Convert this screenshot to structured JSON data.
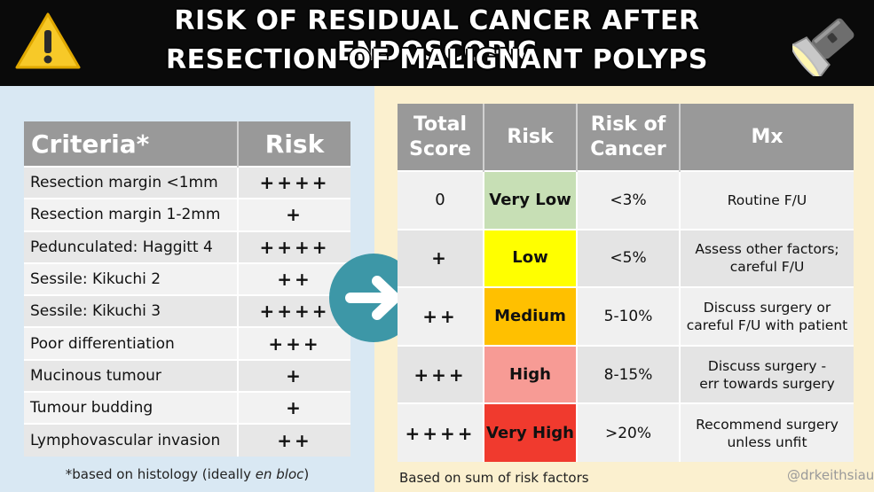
{
  "header": {
    "title_line1": "Risk of residual cancer after endoscopic",
    "title_line2": "resection of malignant polyps",
    "left_icon": "warning-icon",
    "right_icon": "flashlight-icon"
  },
  "criteria_table": {
    "headers": [
      "Criteria*",
      "Risk"
    ],
    "rows": [
      {
        "criterion": "Resection margin <1mm",
        "risk": "++++"
      },
      {
        "criterion": "Resection margin 1-2mm",
        "risk": "+"
      },
      {
        "criterion": "Pedunculated: Haggitt 4",
        "risk": "++++"
      },
      {
        "criterion": "Sessile: Kikuchi 2",
        "risk": "++"
      },
      {
        "criterion": "Sessile: Kikuchi 3",
        "risk": "++++"
      },
      {
        "criterion": "Poor differentiation",
        "risk": "+++"
      },
      {
        "criterion": "Mucinous tumour",
        "risk": "+"
      },
      {
        "criterion": "Tumour budding",
        "risk": "+"
      },
      {
        "criterion": "Lymphovascular invasion",
        "risk": "++"
      }
    ],
    "footnote_prefix": "*based on histology (ideally ",
    "footnote_italic": "en bloc",
    "footnote_suffix": ")"
  },
  "arrow_icon": "right-arrow-icon",
  "score_table": {
    "headers": [
      "Total Score",
      "Risk",
      "Risk of Cancer",
      "Mx"
    ],
    "rows": [
      {
        "score": "0",
        "risk": "Very Low",
        "risk_color": "#c7dfb5",
        "cancer": "<3%",
        "mx_line1": "Routine F/U",
        "mx_line2": ""
      },
      {
        "score": "+",
        "risk": "Low",
        "risk_color": "#ffff00",
        "cancer": "<5%",
        "mx_line1": "Assess other factors;",
        "mx_line2": "careful F/U"
      },
      {
        "score": "++",
        "risk": "Medium",
        "risk_color": "#ffc000",
        "cancer": "5-10%",
        "mx_line1": "Discuss surgery or",
        "mx_line2": "careful F/U with patient"
      },
      {
        "score": "+++",
        "risk": "High",
        "risk_color": "#f79b95",
        "cancer": "8-15%",
        "mx_line1": "Discuss surgery -",
        "mx_line2": "err towards surgery"
      },
      {
        "score": "++++",
        "risk": "Very High",
        "risk_color": "#f03a2e",
        "cancer": ">20%",
        "mx_line1": "Recommend surgery",
        "mx_line2": "unless unfit"
      }
    ],
    "footnote": "Based on sum of risk factors"
  },
  "handle": "@drkeithsiau",
  "colors": {
    "header_bg": "#0a0a0a",
    "left_bg": "#d9e8f3",
    "right_bg": "#fbf0cf",
    "table_header": "#999999",
    "arrow": "#3d97a7"
  }
}
